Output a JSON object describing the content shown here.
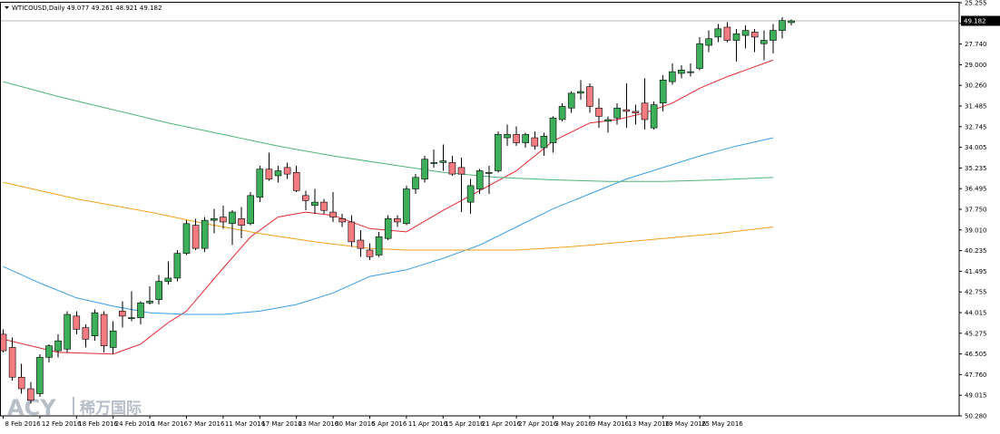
{
  "header": {
    "symbol_line": "WTICOUSD,Daily  49.077 49.261 48.921 49.182"
  },
  "watermark": {
    "brand": "ACY",
    "brand_cn": "稀万国际"
  },
  "colors": {
    "bull": "#3dae5a",
    "bear": "#f47c80",
    "ma_red": "#e0282f",
    "ma_blue": "#3b9ee5",
    "ma_orange": "#f2a21c",
    "ma_green": "#4fb377",
    "price_line": "#bbbbbb",
    "price_label_bg": "#000000"
  },
  "chart_data": {
    "type": "candlestick",
    "symbol": "WTICOUSD",
    "timeframe": "Daily",
    "last_price": "49.182",
    "ylim": [
      25.255,
      50.28
    ],
    "y_ticks": [
      "50.280",
      "49.015",
      "47.760",
      "46.505",
      "45.275",
      "44.015",
      "42.755",
      "41.495",
      "40.235",
      "39.010",
      "37.750",
      "36.495",
      "35.235",
      "34.005",
      "32.745",
      "31.485",
      "30.260",
      "29.000",
      "27.740",
      "26.480",
      "25.255"
    ],
    "x_ticks": [
      "8 Feb 2016",
      "12 Feb 2016",
      "18 Feb 2016",
      "24 Feb 2016",
      "1 Mar 2016",
      "7 Mar 2016",
      "11 Mar 2016",
      "17 Mar 2016",
      "23 Mar 2016",
      "30 Mar 2016",
      "5 Apr 2016",
      "11 Apr 2016",
      "15 Apr 2016",
      "21 Apr 2016",
      "27 Apr 2016",
      "3 May 2016",
      "9 May 2016",
      "13 May 2016",
      "19 May 2016",
      "25 May 2016"
    ],
    "x_tick_bar_index": [
      0,
      4,
      8,
      12,
      16,
      20,
      24,
      28,
      32,
      36,
      40,
      44,
      48,
      52,
      56,
      60,
      64,
      68,
      72,
      76
    ],
    "ohlc": [
      [
        30.2,
        30.5,
        29.1,
        29.2
      ],
      [
        29.4,
        30.0,
        27.4,
        27.6
      ],
      [
        27.6,
        28.4,
        26.6,
        26.9
      ],
      [
        26.9,
        27.3,
        26.0,
        26.2
      ],
      [
        26.6,
        29.0,
        26.4,
        28.8
      ],
      [
        28.8,
        29.6,
        28.5,
        29.5
      ],
      [
        29.2,
        30.2,
        28.8,
        29.8
      ],
      [
        29.3,
        31.6,
        29.1,
        31.4
      ],
      [
        31.3,
        31.6,
        30.2,
        30.5
      ],
      [
        30.6,
        30.8,
        29.4,
        29.9
      ],
      [
        30.1,
        31.7,
        29.8,
        31.5
      ],
      [
        31.4,
        31.6,
        29.1,
        29.5
      ],
      [
        29.4,
        31.0,
        29.0,
        30.4
      ],
      [
        31.6,
        32.2,
        30.6,
        31.3
      ],
      [
        31.2,
        32.8,
        31.0,
        31.2
      ],
      [
        31.2,
        32.2,
        30.8,
        32.1
      ],
      [
        32.1,
        33.1,
        32.0,
        32.2
      ],
      [
        32.3,
        33.8,
        32.0,
        33.4
      ],
      [
        33.4,
        34.6,
        33.2,
        33.6
      ],
      [
        33.6,
        35.3,
        33.4,
        35.1
      ],
      [
        35.1,
        37.1,
        35.0,
        36.9
      ],
      [
        36.8,
        37.2,
        35.3,
        35.4
      ],
      [
        35.4,
        37.3,
        35.2,
        37.1
      ],
      [
        37.1,
        37.8,
        36.3,
        37.2
      ],
      [
        37.3,
        38.0,
        36.6,
        37.0
      ],
      [
        36.9,
        37.7,
        35.6,
        37.6
      ],
      [
        37.2,
        37.9,
        36.0,
        36.8
      ],
      [
        36.9,
        38.8,
        36.8,
        38.6
      ],
      [
        38.5,
        40.4,
        38.2,
        40.2
      ],
      [
        40.2,
        41.2,
        39.5,
        39.6
      ],
      [
        39.8,
        40.4,
        39.4,
        40.1
      ],
      [
        40.3,
        40.6,
        39.6,
        39.9
      ],
      [
        40.0,
        40.4,
        38.8,
        38.9
      ],
      [
        38.6,
        38.9,
        37.7,
        38.3
      ],
      [
        38.0,
        39.0,
        37.5,
        38.2
      ],
      [
        38.2,
        38.4,
        37.5,
        37.7
      ],
      [
        37.6,
        38.8,
        37.0,
        37.3
      ],
      [
        37.2,
        37.5,
        36.7,
        37.0
      ],
      [
        37.0,
        37.4,
        35.5,
        35.8
      ],
      [
        35.9,
        36.5,
        34.9,
        35.4
      ],
      [
        35.3,
        35.7,
        34.7,
        34.9
      ],
      [
        35.0,
        36.4,
        34.9,
        36.1
      ],
      [
        36.0,
        37.4,
        35.9,
        37.2
      ],
      [
        37.2,
        37.4,
        36.7,
        37.0
      ],
      [
        36.9,
        39.2,
        36.8,
        39.0
      ],
      [
        39.0,
        39.9,
        38.7,
        39.7
      ],
      [
        39.6,
        41.0,
        39.4,
        40.8
      ],
      [
        40.6,
        41.4,
        40.3,
        40.6
      ],
      [
        40.6,
        41.7,
        40.1,
        40.7
      ],
      [
        40.6,
        41.0,
        39.8,
        39.9
      ],
      [
        40.3,
        40.9,
        37.6,
        39.9
      ],
      [
        38.2,
        39.6,
        37.5,
        39.2
      ],
      [
        39.0,
        40.2,
        38.7,
        40.1
      ],
      [
        40.0,
        40.4,
        38.7,
        40.0
      ],
      [
        40.1,
        42.5,
        40.0,
        42.3
      ],
      [
        42.1,
        42.9,
        41.6,
        42.3
      ],
      [
        42.3,
        42.8,
        41.6,
        41.8
      ],
      [
        41.8,
        42.4,
        41.5,
        42.3
      ],
      [
        42.1,
        42.5,
        41.4,
        41.6
      ],
      [
        41.5,
        42.4,
        41.0,
        42.2
      ],
      [
        41.8,
        43.4,
        41.2,
        43.3
      ],
      [
        43.2,
        44.2,
        43.1,
        44.0
      ],
      [
        43.9,
        44.9,
        43.6,
        44.8
      ],
      [
        44.8,
        45.6,
        44.4,
        44.9
      ],
      [
        45.2,
        45.4,
        43.6,
        44.0
      ],
      [
        43.9,
        44.5,
        42.7,
        43.4
      ],
      [
        43.1,
        43.4,
        42.4,
        43.2
      ],
      [
        43.3,
        44.2,
        42.9,
        43.9
      ],
      [
        43.8,
        45.4,
        42.7,
        43.7
      ],
      [
        43.7,
        44.1,
        42.9,
        43.6
      ],
      [
        44.2,
        45.7,
        42.6,
        43.2
      ],
      [
        42.7,
        44.3,
        42.6,
        44.1
      ],
      [
        44.2,
        45.9,
        43.7,
        45.6
      ],
      [
        45.5,
        46.6,
        45.3,
        46.1
      ],
      [
        46.0,
        46.5,
        45.7,
        46.2
      ],
      [
        46.1,
        46.6,
        45.8,
        46.1
      ],
      [
        46.3,
        48.2,
        46.2,
        47.8
      ],
      [
        47.7,
        48.6,
        47.3,
        48.1
      ],
      [
        48.2,
        49.0,
        47.9,
        48.7
      ],
      [
        48.8,
        49.1,
        47.9,
        48.0
      ],
      [
        48.0,
        48.7,
        46.7,
        48.4
      ],
      [
        48.3,
        48.9,
        47.5,
        48.6
      ],
      [
        48.5,
        48.7,
        47.3,
        48.2
      ],
      [
        47.8,
        48.6,
        46.8,
        48.0
      ],
      [
        48.0,
        49.0,
        47.2,
        48.6
      ],
      [
        48.6,
        49.4,
        48.1,
        49.2
      ],
      [
        49.077,
        49.261,
        48.921,
        49.182
      ]
    ],
    "series": [
      {
        "color_key": "ma_red",
        "points": [
          [
            0,
            29.9
          ],
          [
            6,
            29.1
          ],
          [
            12,
            29.0
          ],
          [
            15,
            29.6
          ],
          [
            18,
            30.9
          ],
          [
            20,
            31.6
          ],
          [
            24,
            34.2
          ],
          [
            27,
            36.1
          ],
          [
            30,
            37.3
          ],
          [
            33,
            37.6
          ],
          [
            36,
            37.4
          ],
          [
            40,
            36.6
          ],
          [
            44,
            36.4
          ],
          [
            48,
            37.7
          ],
          [
            52,
            38.9
          ],
          [
            56,
            40.1
          ],
          [
            60,
            41.9
          ],
          [
            64,
            43.0
          ],
          [
            67,
            43.2
          ],
          [
            70,
            43.6
          ],
          [
            73,
            44.2
          ],
          [
            76,
            45.1
          ],
          [
            79,
            45.8
          ],
          [
            82,
            46.4
          ],
          [
            84,
            46.8
          ]
        ]
      },
      {
        "color_key": "ma_blue",
        "points": [
          [
            0,
            34.3
          ],
          [
            4,
            33.3
          ],
          [
            8,
            32.4
          ],
          [
            12,
            31.9
          ],
          [
            16,
            31.5
          ],
          [
            20,
            31.4
          ],
          [
            24,
            31.4
          ],
          [
            28,
            31.6
          ],
          [
            32,
            32.0
          ],
          [
            36,
            32.7
          ],
          [
            40,
            33.7
          ],
          [
            44,
            34.1
          ],
          [
            48,
            34.8
          ],
          [
            52,
            35.6
          ],
          [
            56,
            36.7
          ],
          [
            60,
            37.8
          ],
          [
            64,
            38.7
          ],
          [
            68,
            39.6
          ],
          [
            72,
            40.3
          ],
          [
            76,
            41.0
          ],
          [
            80,
            41.6
          ],
          [
            84,
            42.1
          ]
        ]
      },
      {
        "color_key": "ma_orange",
        "points": [
          [
            0,
            39.4
          ],
          [
            8,
            38.4
          ],
          [
            16,
            37.6
          ],
          [
            22,
            36.9
          ],
          [
            28,
            36.3
          ],
          [
            34,
            35.8
          ],
          [
            40,
            35.4
          ],
          [
            44,
            35.3
          ],
          [
            50,
            35.3
          ],
          [
            56,
            35.3
          ],
          [
            62,
            35.5
          ],
          [
            68,
            35.8
          ],
          [
            72,
            36.0
          ],
          [
            78,
            36.3
          ],
          [
            84,
            36.7
          ]
        ]
      },
      {
        "color_key": "ma_green",
        "points": [
          [
            0,
            45.5
          ],
          [
            6,
            44.6
          ],
          [
            12,
            43.8
          ],
          [
            18,
            43.0
          ],
          [
            24,
            42.3
          ],
          [
            30,
            41.6
          ],
          [
            36,
            41.0
          ],
          [
            42,
            40.5
          ],
          [
            48,
            40.0
          ],
          [
            54,
            39.7
          ],
          [
            60,
            39.55
          ],
          [
            66,
            39.45
          ],
          [
            72,
            39.45
          ],
          [
            78,
            39.55
          ],
          [
            84,
            39.7
          ]
        ]
      }
    ]
  }
}
